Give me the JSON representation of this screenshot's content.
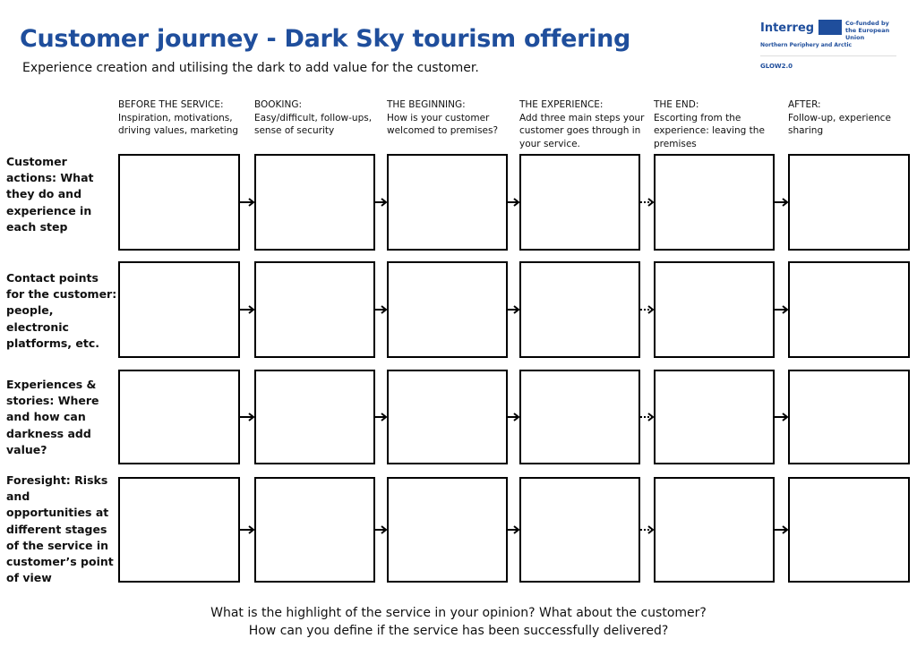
{
  "header": {
    "title": "Customer journey - Dark Sky tourism offering",
    "subtitle": "Experience creation and utilising the dark to add value for the customer."
  },
  "logo": {
    "brand": "Interreg",
    "cofunded": "Co-funded by the European Union",
    "programme": "Northern Periphery and Arctic",
    "project": "GLOW2.0",
    "brand_color": "#1f4e9c"
  },
  "columns": [
    {
      "title": "BEFORE THE SERVICE:",
      "desc": "Inspiration, motivations, driving values, marketing"
    },
    {
      "title": "BOOKING:",
      "desc": "Easy/difficult, follow-ups, sense of security"
    },
    {
      "title": "THE BEGINNING:",
      "desc": "How is your customer welcomed to premises?"
    },
    {
      "title": "THE EXPERIENCE:",
      "desc": "Add three main steps your customer goes through in your service."
    },
    {
      "title": "THE END:",
      "desc": "Escorting from the experience: leaving the premises"
    },
    {
      "title": "AFTER:",
      "desc": "Follow-up, experience sharing"
    }
  ],
  "rows": [
    {
      "label": "Customer actions: What they do and experience in each step"
    },
    {
      "label": "Contact points for the customer: people, electronic platforms, etc."
    },
    {
      "label": "Experiences & stories: Where and how can darkness add value?"
    },
    {
      "label": "Foresight: Risks and opportunities at different stages of the service in customer’s point of view"
    }
  ],
  "footer": {
    "line1": "What is the highlight of the service in your opinion? What about the customer?",
    "line2": "How can you define if the service has been successfully delivered?"
  }
}
